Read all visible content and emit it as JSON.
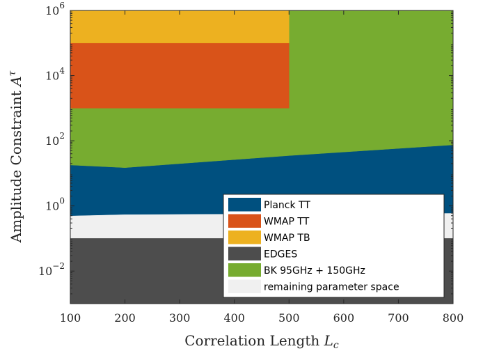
{
  "chart_data": {
    "type": "area",
    "title": "",
    "xlabel": "Correlation Length",
    "xlabel_symbol": "L",
    "xlabel_subscript": "c",
    "ylabel": "Amplitude Constraint",
    "ylabel_symbol": "A",
    "ylabel_superscript": "τ",
    "xlim": [
      100,
      800
    ],
    "ylim": [
      0.001,
      1000000
    ],
    "yscale": "log",
    "x_ticks": [
      "100",
      "200",
      "300",
      "400",
      "500",
      "600",
      "700",
      "800"
    ],
    "y_ticks": [
      {
        "base": "10",
        "exp": "6",
        "value": 1000000
      },
      {
        "base": "10",
        "exp": "4",
        "value": 10000
      },
      {
        "base": "10",
        "exp": "2",
        "value": 100
      },
      {
        "base": "10",
        "exp": "0",
        "value": 1
      },
      {
        "base": "10",
        "exp": "−2",
        "value": 0.01
      }
    ],
    "grid": false,
    "legend_position": "bottom-right",
    "series": [
      {
        "name": "remaining parameter space",
        "color": "#f0f0f0",
        "x": [
          100,
          200,
          500,
          800
        ],
        "y_lower": [
          0.1,
          0.1,
          0.1,
          0.1
        ],
        "y_upper": [
          0.5,
          0.55,
          0.58,
          0.6
        ]
      },
      {
        "name": "EDGES",
        "color": "#4d4d4d",
        "x": [
          100,
          800
        ],
        "y_lower": [
          0.001,
          0.001
        ],
        "y_upper": [
          0.1,
          0.1
        ]
      },
      {
        "name": "Planck TT",
        "color": "#00507f",
        "x": [
          100,
          200,
          500,
          800
        ],
        "y_lower": [
          0.5,
          0.55,
          0.58,
          0.6
        ],
        "y_upper": [
          18,
          15,
          35,
          75
        ]
      },
      {
        "name": "BK 95GHz + 150GHz",
        "color": "#77ac30",
        "x": [
          100,
          200,
          500,
          800
        ],
        "y_lower": [
          18,
          15,
          35,
          75
        ],
        "y_upper": [
          1000000,
          1000000,
          1000000,
          1000000
        ]
      },
      {
        "name": "WMAP TT",
        "color": "#d95319",
        "x": [
          100,
          500
        ],
        "y_lower": [
          1000,
          1000
        ],
        "y_upper": [
          100000,
          100000
        ]
      },
      {
        "name": "WMAP TB",
        "color": "#edb120",
        "x": [
          100,
          500
        ],
        "y_lower": [
          100000,
          100000
        ],
        "y_upper": [
          1000000,
          1000000
        ]
      }
    ],
    "legend": [
      {
        "label": "Planck TT",
        "color": "#00507f"
      },
      {
        "label": "WMAP TT",
        "color": "#d95319"
      },
      {
        "label": "WMAP TB",
        "color": "#edb120"
      },
      {
        "label": "EDGES",
        "color": "#4d4d4d"
      },
      {
        "label": "BK 95GHz + 150GHz",
        "color": "#77ac30"
      },
      {
        "label": "remaining parameter space",
        "color": "#f0f0f0"
      }
    ]
  }
}
